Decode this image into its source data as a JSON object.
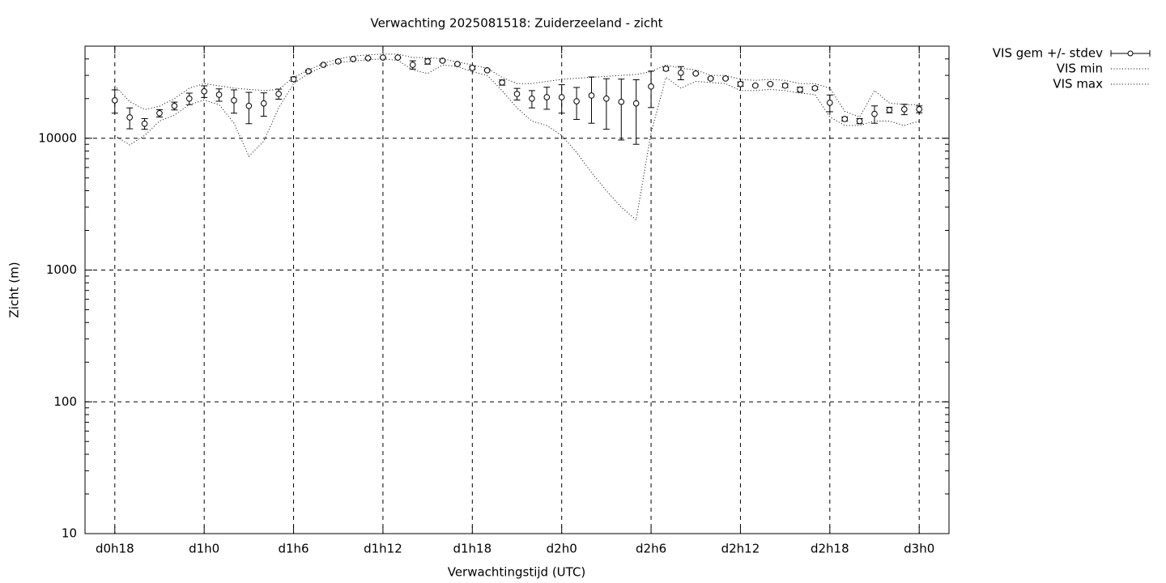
{
  "chart_data": {
    "type": "line",
    "title": "Verwachting 2025081518: Zuiderzeeland - zicht",
    "x_label": "Verwachtingstijd (UTC)",
    "y_label": "Zicht (m)",
    "log_y": true,
    "grid": true,
    "legend": "outside-right",
    "xlim": [
      16,
      74
    ],
    "ylim": [
      10,
      50000
    ],
    "xticks": [
      {
        "value": 18,
        "label": "d0h18"
      },
      {
        "value": 24,
        "label": "d1h0"
      },
      {
        "value": 30,
        "label": "d1h6"
      },
      {
        "value": 36,
        "label": "d1h12"
      },
      {
        "value": 42,
        "label": "d1h18"
      },
      {
        "value": 48,
        "label": "d2h0"
      },
      {
        "value": 54,
        "label": "d2h6"
      },
      {
        "value": 60,
        "label": "d2h12"
      },
      {
        "value": 66,
        "label": "d2h18"
      },
      {
        "value": 72,
        "label": "d3h0"
      }
    ],
    "yticks": [
      10,
      100,
      1000,
      10000
    ],
    "x": [
      18,
      19,
      20,
      21,
      22,
      23,
      24,
      25,
      26,
      27,
      28,
      29,
      30,
      31,
      32,
      33,
      34,
      35,
      36,
      37,
      38,
      39,
      40,
      41,
      42,
      43,
      44,
      45,
      46,
      47,
      48,
      49,
      50,
      51,
      52,
      53,
      54,
      55,
      56,
      57,
      58,
      59,
      60,
      61,
      62,
      63,
      64,
      65,
      66,
      67,
      68,
      69,
      70,
      71,
      72
    ],
    "series": [
      {
        "name": "VIS gem +/- stdev",
        "type": "errorbar",
        "color": "#000000",
        "values": [
          19400,
          14400,
          12900,
          15500,
          17600,
          20000,
          22700,
          21400,
          19400,
          17600,
          18400,
          21700,
          28100,
          32300,
          36100,
          38300,
          39900,
          40500,
          41000,
          41000,
          36100,
          38300,
          38800,
          36600,
          34200,
          32800,
          26500,
          21700,
          20000,
          20500,
          20500,
          19100,
          21100,
          20000,
          18900,
          18400,
          24700,
          33700,
          31400,
          31000,
          28400,
          28400,
          25800,
          25100,
          25800,
          25100,
          23400,
          24000,
          18600,
          14000,
          13500,
          15300,
          16400,
          16600,
          16600
        ],
        "stdev": [
          3900,
          2600,
          1200,
          1000,
          1200,
          2000,
          2300,
          2300,
          3900,
          4700,
          3700,
          1900,
          1000,
          600,
          500,
          400,
          400,
          400,
          400,
          400,
          2600,
          1800,
          400,
          400,
          1000,
          400,
          1200,
          2200,
          3000,
          3900,
          5000,
          5200,
          8100,
          8300,
          9200,
          9400,
          7600,
          1000,
          3600,
          400,
          400,
          400,
          1000,
          400,
          400,
          800,
          1000,
          600,
          2700,
          500,
          600,
          2300,
          800,
          1500,
          1000
        ]
      },
      {
        "name": "VIS min",
        "type": "line",
        "color": "#000000",
        "values": [
          10500,
          8900,
          10500,
          13500,
          15000,
          18000,
          19500,
          18000,
          13000,
          7300,
          9500,
          17000,
          26000,
          31000,
          35000,
          37500,
          38500,
          39500,
          40000,
          39000,
          33000,
          31000,
          36000,
          35000,
          32000,
          30000,
          23000,
          17000,
          13500,
          12500,
          10500,
          7800,
          5500,
          4000,
          3000,
          2400,
          11000,
          29000,
          24000,
          27000,
          26500,
          26000,
          23000,
          23000,
          23500,
          23000,
          22000,
          21500,
          14500,
          12500,
          12500,
          13500,
          13500,
          12500,
          13500
        ]
      },
      {
        "name": "VIS max",
        "type": "line",
        "color": "#000000",
        "values": [
          25000,
          19000,
          16500,
          17500,
          20000,
          24000,
          26000,
          25000,
          24000,
          23500,
          23000,
          23500,
          29000,
          33000,
          37000,
          40000,
          42000,
          43000,
          43500,
          43500,
          41000,
          41000,
          40000,
          38000,
          36000,
          34000,
          29000,
          26000,
          26000,
          27000,
          28000,
          28500,
          29000,
          29500,
          30000,
          30500,
          32000,
          36000,
          34000,
          33000,
          30000,
          30000,
          28000,
          27500,
          28000,
          27500,
          26000,
          26000,
          24000,
          16000,
          14500,
          23000,
          18500,
          18000,
          18000
        ]
      }
    ]
  }
}
